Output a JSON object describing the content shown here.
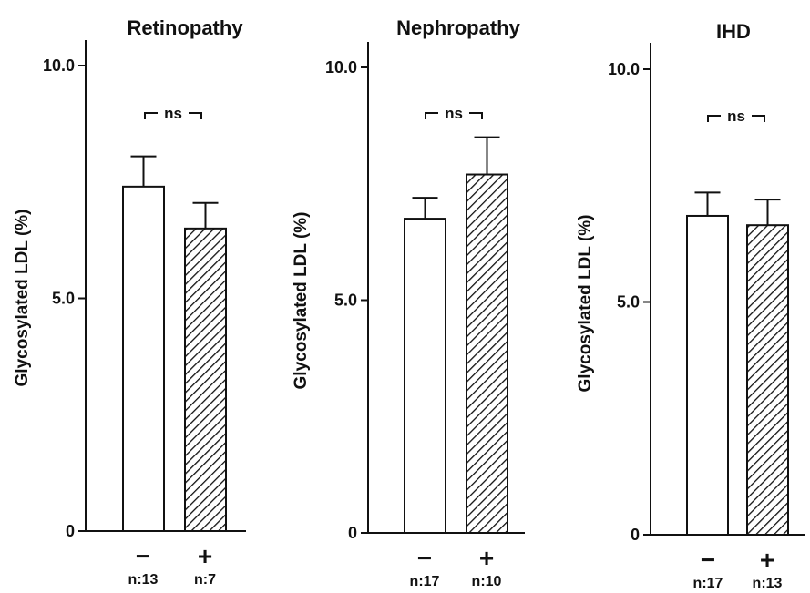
{
  "chart_data": [
    {
      "type": "bar",
      "title": "Retinopathy",
      "ylabel": "Glycosylated LDL (%)",
      "ylim": [
        0,
        10
      ],
      "yticks": [
        "0",
        "5.0",
        "10.0"
      ],
      "categories": [
        "−",
        "+"
      ],
      "n_labels": [
        "n:13",
        "n:7"
      ],
      "values": [
        7.4,
        6.5
      ],
      "errors": [
        0.65,
        0.55
      ],
      "annotation": "ns",
      "bar_fills": [
        "white",
        "hatched"
      ]
    },
    {
      "type": "bar",
      "title": "Nephropathy",
      "ylabel": "Glycosylated LDL (%)",
      "ylim": [
        0,
        10
      ],
      "yticks": [
        "0",
        "5.0",
        "10.0"
      ],
      "categories": [
        "−",
        "+"
      ],
      "n_labels": [
        "n:17",
        "n:10"
      ],
      "values": [
        6.75,
        7.7
      ],
      "errors": [
        0.45,
        0.8
      ],
      "annotation": "ns",
      "bar_fills": [
        "white",
        "hatched"
      ]
    },
    {
      "type": "bar",
      "title": "IHD",
      "ylabel": "Glycosylated LDL (%)",
      "ylim": [
        0,
        10
      ],
      "yticks": [
        "0",
        "5.0",
        "10.0"
      ],
      "categories": [
        "−",
        "+"
      ],
      "n_labels": [
        "n:17",
        "n:13"
      ],
      "values": [
        6.85,
        6.65
      ],
      "errors": [
        0.5,
        0.55
      ],
      "annotation": "ns",
      "bar_fills": [
        "white",
        "hatched"
      ]
    }
  ],
  "colors": {
    "ink": "#111111",
    "background": "#ffffff"
  }
}
